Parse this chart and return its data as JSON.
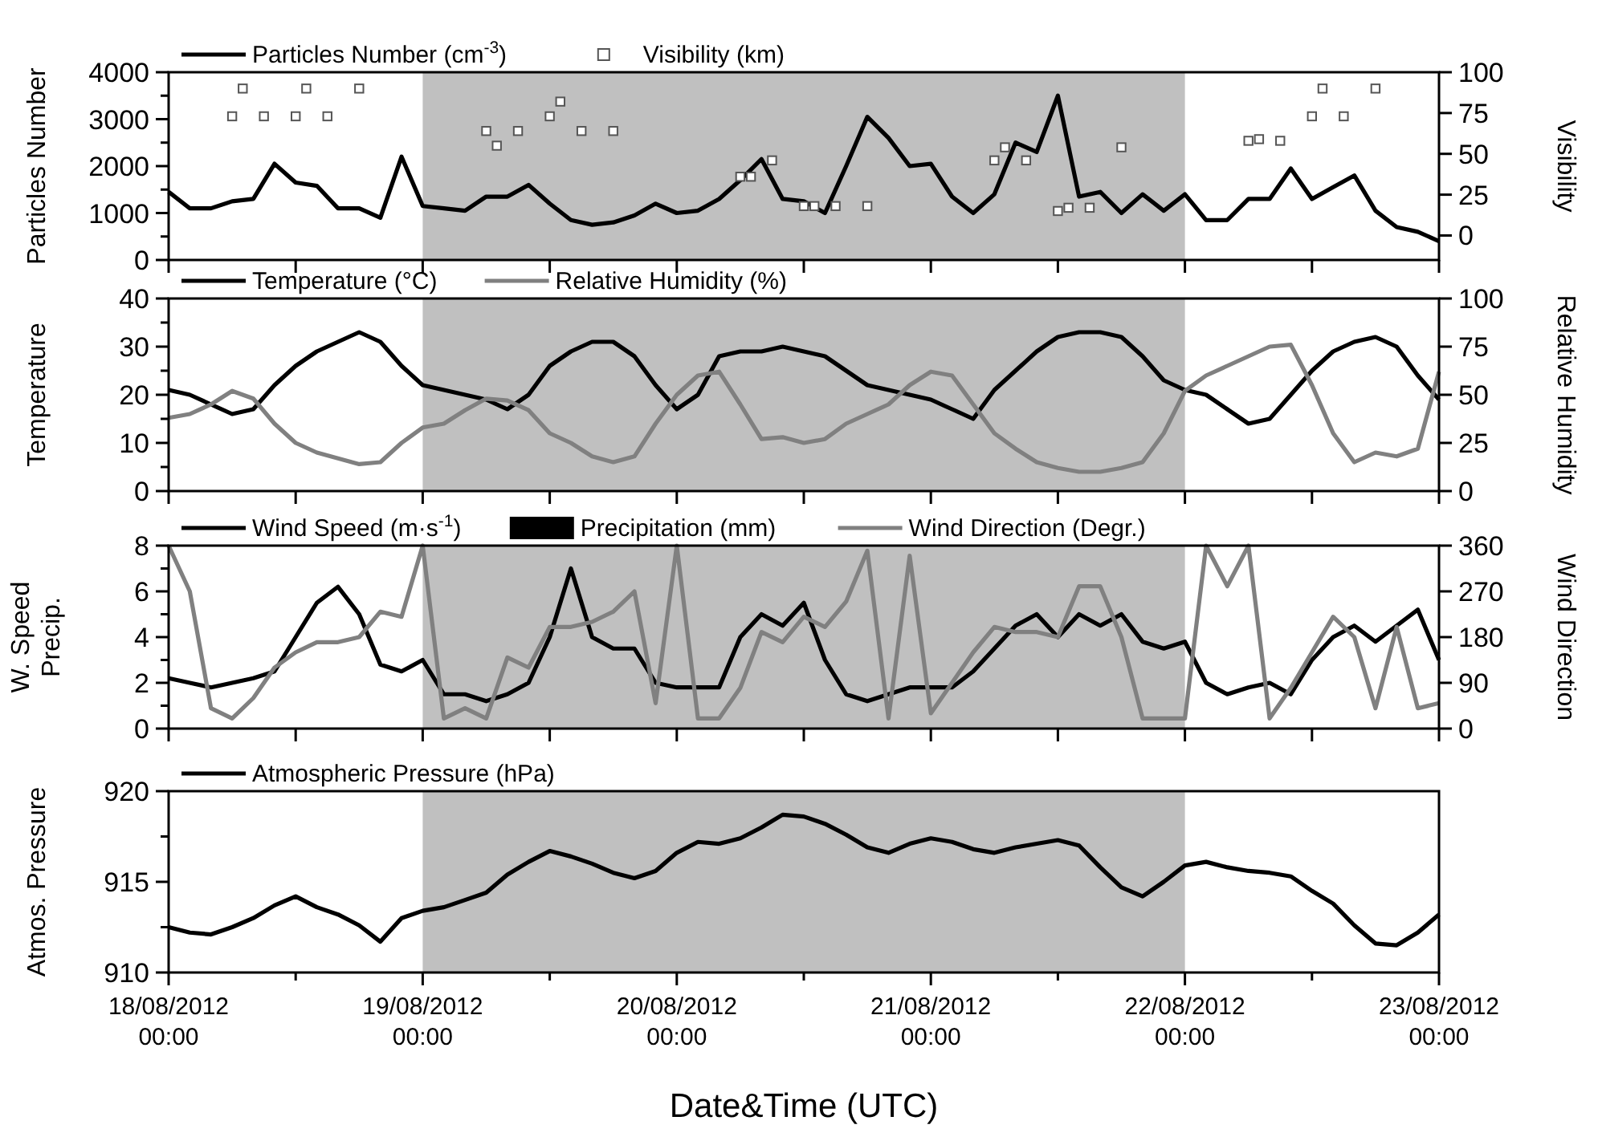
{
  "chart_data": [
    {
      "type": "line",
      "legend": "top left",
      "tick_labels": "y",
      "ylabel": "Particles Number",
      "y2label": "Visibility",
      "xlim": [
        "2012-08-18T00:00",
        "2012-08-23T00:00"
      ],
      "xticks": [
        {
          "value": "2012-08-18T00:00",
          "label": null
        },
        {
          "value": "2012-08-18T12:00",
          "label": null
        },
        {
          "value": "2012-08-19T00:00",
          "label": null
        },
        {
          "value": "2012-08-19T12:00",
          "label": null
        },
        {
          "value": "2012-08-20T00:00",
          "label": null
        },
        {
          "value": "2012-08-20T12:00",
          "label": null
        },
        {
          "value": "2012-08-21T00:00",
          "label": null
        },
        {
          "value": "2012-08-21T12:00",
          "label": null
        },
        {
          "value": "2012-08-22T00:00",
          "label": null
        },
        {
          "value": "2012-08-22T12:00",
          "label": null
        },
        {
          "value": "2012-08-23T00:00",
          "label": null
        }
      ],
      "ylim": [
        0,
        4000
      ],
      "yticks": [
        0,
        {
          "value": 500,
          "label": null
        },
        1000,
        {
          "value": 1500,
          "label": null
        },
        2000,
        {
          "value": 2500,
          "label": null
        },
        3000,
        {
          "value": 3500,
          "label": null
        },
        4000
      ],
      "y2lim": [
        -15,
        100
      ],
      "y2ticks": [
        0,
        25,
        50,
        75,
        100
      ],
      "bands": [
        {
          "axis": "x",
          "from": "2012-08-19T00:00",
          "to": "2012-08-22T00:00",
          "color": "#c0c0c0"
        }
      ],
      "x": [
        "2012-08-18T00:00",
        "2012-08-18T02:00",
        "2012-08-18T04:00",
        "2012-08-18T06:00",
        "2012-08-18T08:00",
        "2012-08-18T10:00",
        "2012-08-18T12:00",
        "2012-08-18T14:00",
        "2012-08-18T16:00",
        "2012-08-18T18:00",
        "2012-08-18T20:00",
        "2012-08-18T22:00",
        "2012-08-19T00:00",
        "2012-08-19T02:00",
        "2012-08-19T04:00",
        "2012-08-19T06:00",
        "2012-08-19T08:00",
        "2012-08-19T10:00",
        "2012-08-19T12:00",
        "2012-08-19T14:00",
        "2012-08-19T16:00",
        "2012-08-19T18:00",
        "2012-08-19T20:00",
        "2012-08-19T22:00",
        "2012-08-20T00:00",
        "2012-08-20T02:00",
        "2012-08-20T04:00",
        "2012-08-20T06:00",
        "2012-08-20T08:00",
        "2012-08-20T10:00",
        "2012-08-20T12:00",
        "2012-08-20T14:00",
        "2012-08-20T16:00",
        "2012-08-20T18:00",
        "2012-08-20T20:00",
        "2012-08-20T22:00",
        "2012-08-21T00:00",
        "2012-08-21T02:00",
        "2012-08-21T04:00",
        "2012-08-21T06:00",
        "2012-08-21T08:00",
        "2012-08-21T10:00",
        "2012-08-21T12:00",
        "2012-08-21T14:00",
        "2012-08-21T16:00",
        "2012-08-21T18:00",
        "2012-08-21T20:00",
        "2012-08-21T22:00",
        "2012-08-22T00:00",
        "2012-08-22T02:00",
        "2012-08-22T04:00",
        "2012-08-22T06:00",
        "2012-08-22T08:00",
        "2012-08-22T10:00",
        "2012-08-22T12:00",
        "2012-08-22T14:00",
        "2012-08-22T16:00",
        "2012-08-22T18:00",
        "2012-08-22T20:00",
        "2012-08-22T22:00",
        "2012-08-23T00:00"
      ],
      "series": [
        {
          "name": "Particles Number (cm$^{-3}$)",
          "color": "#000000",
          "values": [
            1450,
            1100,
            1100,
            1250,
            1300,
            2050,
            1650,
            1580,
            1100,
            1100,
            900,
            2200,
            1150,
            1100,
            1050,
            1350,
            1350,
            1600,
            1200,
            850,
            750,
            800,
            950,
            1200,
            1000,
            1050,
            1300,
            1700,
            2150,
            1300,
            1250,
            1000,
            2000,
            3050,
            2600,
            2000,
            2050,
            1350,
            1000,
            1400,
            2500,
            2300,
            3500,
            1350,
            1450,
            1000,
            1400,
            1050,
            1400,
            850,
            850,
            1300,
            1300,
            1950,
            1300,
            1550,
            1800,
            1050,
            700,
            600,
            400
          ]
        },
        {
          "name": "Visibility (km)",
          "type": "scatter",
          "marker": "square",
          "axis": "y2",
          "color": "#555555",
          "x": [
            "2012-08-18T06:00",
            "2012-08-18T07:00",
            "2012-08-18T09:00",
            "2012-08-18T12:00",
            "2012-08-18T13:00",
            "2012-08-18T15:00",
            "2012-08-18T18:00",
            "2012-08-19T06:00",
            "2012-08-19T07:00",
            "2012-08-19T09:00",
            "2012-08-19T12:00",
            "2012-08-19T13:00",
            "2012-08-19T15:00",
            "2012-08-19T18:00",
            "2012-08-20T06:00",
            "2012-08-20T07:00",
            "2012-08-20T09:00",
            "2012-08-20T12:00",
            "2012-08-20T13:00",
            "2012-08-20T15:00",
            "2012-08-20T18:00",
            "2012-08-21T06:00",
            "2012-08-21T07:00",
            "2012-08-21T09:00",
            "2012-08-21T12:00",
            "2012-08-21T13:00",
            "2012-08-21T15:00",
            "2012-08-21T18:00",
            "2012-08-22T06:00",
            "2012-08-22T07:00",
            "2012-08-22T09:00",
            "2012-08-22T12:00",
            "2012-08-22T13:00",
            "2012-08-22T15:00",
            "2012-08-22T18:00"
          ],
          "values": [
            73,
            90,
            73,
            73,
            90,
            73,
            90,
            64,
            55,
            64,
            73,
            82,
            64,
            64,
            36,
            36,
            46,
            18,
            18,
            18,
            18,
            46,
            54,
            46,
            15,
            17,
            17,
            54,
            58,
            59,
            58,
            73,
            90,
            73,
            90
          ]
        }
      ]
    },
    {
      "type": "line",
      "legend": "top left",
      "tick_labels": "y",
      "ylabel": "Temperature",
      "y2label": "Relative Humidity",
      "xlim": [
        "2012-08-18T00:00",
        "2012-08-23T00:00"
      ],
      "xticks": [
        {
          "value": "2012-08-18T00:00",
          "label": null
        },
        {
          "value": "2012-08-18T12:00",
          "label": null
        },
        {
          "value": "2012-08-19T00:00",
          "label": null
        },
        {
          "value": "2012-08-19T12:00",
          "label": null
        },
        {
          "value": "2012-08-20T00:00",
          "label": null
        },
        {
          "value": "2012-08-20T12:00",
          "label": null
        },
        {
          "value": "2012-08-21T00:00",
          "label": null
        },
        {
          "value": "2012-08-21T12:00",
          "label": null
        },
        {
          "value": "2012-08-22T00:00",
          "label": null
        },
        {
          "value": "2012-08-22T12:00",
          "label": null
        },
        {
          "value": "2012-08-23T00:00",
          "label": null
        }
      ],
      "ylim": [
        0,
        40
      ],
      "yticks": [
        0,
        {
          "value": 5,
          "label": null
        },
        10,
        {
          "value": 15,
          "label": null
        },
        20,
        {
          "value": 25,
          "label": null
        },
        30,
        {
          "value": 35,
          "label": null
        },
        40
      ],
      "y2lim": [
        0,
        100
      ],
      "y2ticks": [
        0,
        25,
        50,
        75,
        100
      ],
      "bands": [
        {
          "axis": "x",
          "from": "2012-08-19T00:00",
          "to": "2012-08-22T00:00",
          "color": "#c0c0c0"
        }
      ],
      "x": [
        "2012-08-18T00:00",
        "2012-08-18T02:00",
        "2012-08-18T04:00",
        "2012-08-18T06:00",
        "2012-08-18T08:00",
        "2012-08-18T10:00",
        "2012-08-18T12:00",
        "2012-08-18T14:00",
        "2012-08-18T16:00",
        "2012-08-18T18:00",
        "2012-08-18T20:00",
        "2012-08-18T22:00",
        "2012-08-19T00:00",
        "2012-08-19T02:00",
        "2012-08-19T04:00",
        "2012-08-19T06:00",
        "2012-08-19T08:00",
        "2012-08-19T10:00",
        "2012-08-19T12:00",
        "2012-08-19T14:00",
        "2012-08-19T16:00",
        "2012-08-19T18:00",
        "2012-08-19T20:00",
        "2012-08-19T22:00",
        "2012-08-20T00:00",
        "2012-08-20T02:00",
        "2012-08-20T04:00",
        "2012-08-20T06:00",
        "2012-08-20T08:00",
        "2012-08-20T10:00",
        "2012-08-20T12:00",
        "2012-08-20T14:00",
        "2012-08-20T16:00",
        "2012-08-20T18:00",
        "2012-08-20T20:00",
        "2012-08-20T22:00",
        "2012-08-21T00:00",
        "2012-08-21T02:00",
        "2012-08-21T04:00",
        "2012-08-21T06:00",
        "2012-08-21T08:00",
        "2012-08-21T10:00",
        "2012-08-21T12:00",
        "2012-08-21T14:00",
        "2012-08-21T16:00",
        "2012-08-21T18:00",
        "2012-08-21T20:00",
        "2012-08-21T22:00",
        "2012-08-22T00:00",
        "2012-08-22T02:00",
        "2012-08-22T04:00",
        "2012-08-22T06:00",
        "2012-08-22T08:00",
        "2012-08-22T10:00",
        "2012-08-22T12:00",
        "2012-08-22T14:00",
        "2012-08-22T16:00",
        "2012-08-22T18:00",
        "2012-08-22T20:00",
        "2012-08-22T22:00",
        "2012-08-23T00:00"
      ],
      "series": [
        {
          "name": "Temperature (°C)",
          "color": "#000000",
          "values": [
            21,
            20,
            18,
            16,
            17,
            22,
            26,
            29,
            31,
            33,
            31,
            26,
            22,
            21,
            20,
            19,
            17,
            20,
            26,
            29,
            31,
            31,
            28,
            22,
            17,
            20,
            28,
            29,
            29,
            30,
            29,
            28,
            25,
            22,
            21,
            20,
            19,
            17,
            15,
            21,
            25,
            29,
            32,
            33,
            33,
            32,
            28,
            23,
            21,
            20,
            17,
            14,
            15,
            20,
            25,
            29,
            31,
            32,
            30,
            24,
            19
          ]
        },
        {
          "name": "Relative Humidity (%)",
          "axis": "y2",
          "color": "#808080",
          "values": [
            38,
            40,
            45,
            52,
            48,
            35,
            25,
            20,
            17,
            14,
            15,
            25,
            33,
            35,
            42,
            48,
            47,
            42,
            30,
            25,
            18,
            15,
            18,
            35,
            50,
            60,
            62,
            45,
            27,
            28,
            25,
            27,
            35,
            40,
            45,
            55,
            62,
            60,
            45,
            30,
            22,
            15,
            12,
            10,
            10,
            12,
            15,
            30,
            52,
            60,
            65,
            70,
            75,
            76,
            55,
            30,
            15,
            20,
            18,
            22,
            62
          ]
        }
      ]
    },
    {
      "type": "line",
      "legend": "top left",
      "tick_labels": "y",
      "ylabel": "W. Speed\nPrecip.",
      "y2label": "Wind Direction",
      "xlim": [
        "2012-08-18T00:00",
        "2012-08-23T00:00"
      ],
      "xticks": [
        {
          "value": "2012-08-18T00:00",
          "label": null
        },
        {
          "value": "2012-08-18T12:00",
          "label": null
        },
        {
          "value": "2012-08-19T00:00",
          "label": null
        },
        {
          "value": "2012-08-19T12:00",
          "label": null
        },
        {
          "value": "2012-08-20T00:00",
          "label": null
        },
        {
          "value": "2012-08-20T12:00",
          "label": null
        },
        {
          "value": "2012-08-21T00:00",
          "label": null
        },
        {
          "value": "2012-08-21T12:00",
          "label": null
        },
        {
          "value": "2012-08-22T00:00",
          "label": null
        },
        {
          "value": "2012-08-22T12:00",
          "label": null
        },
        {
          "value": "2012-08-23T00:00",
          "label": null
        }
      ],
      "ylim": [
        0,
        8
      ],
      "yticks": [
        0,
        {
          "value": 1,
          "label": null
        },
        2,
        {
          "value": 3,
          "label": null
        },
        4,
        {
          "value": 5,
          "label": null
        },
        6,
        {
          "value": 7,
          "label": null
        },
        8
      ],
      "y2lim": [
        0,
        360
      ],
      "y2ticks": [
        0,
        90,
        180,
        270,
        360
      ],
      "bands": [
        {
          "axis": "x",
          "from": "2012-08-19T00:00",
          "to": "2012-08-22T00:00",
          "color": "#c0c0c0"
        }
      ],
      "x": [
        "2012-08-18T00:00",
        "2012-08-18T02:00",
        "2012-08-18T04:00",
        "2012-08-18T06:00",
        "2012-08-18T08:00",
        "2012-08-18T10:00",
        "2012-08-18T12:00",
        "2012-08-18T14:00",
        "2012-08-18T16:00",
        "2012-08-18T18:00",
        "2012-08-18T20:00",
        "2012-08-18T22:00",
        "2012-08-19T00:00",
        "2012-08-19T02:00",
        "2012-08-19T04:00",
        "2012-08-19T06:00",
        "2012-08-19T08:00",
        "2012-08-19T10:00",
        "2012-08-19T12:00",
        "2012-08-19T14:00",
        "2012-08-19T16:00",
        "2012-08-19T18:00",
        "2012-08-19T20:00",
        "2012-08-19T22:00",
        "2012-08-20T00:00",
        "2012-08-20T02:00",
        "2012-08-20T04:00",
        "2012-08-20T06:00",
        "2012-08-20T08:00",
        "2012-08-20T10:00",
        "2012-08-20T12:00",
        "2012-08-20T14:00",
        "2012-08-20T16:00",
        "2012-08-20T18:00",
        "2012-08-20T20:00",
        "2012-08-20T22:00",
        "2012-08-21T00:00",
        "2012-08-21T02:00",
        "2012-08-21T04:00",
        "2012-08-21T06:00",
        "2012-08-21T08:00",
        "2012-08-21T10:00",
        "2012-08-21T12:00",
        "2012-08-21T14:00",
        "2012-08-21T16:00",
        "2012-08-21T18:00",
        "2012-08-21T20:00",
        "2012-08-21T22:00",
        "2012-08-22T00:00",
        "2012-08-22T02:00",
        "2012-08-22T04:00",
        "2012-08-22T06:00",
        "2012-08-22T08:00",
        "2012-08-22T10:00",
        "2012-08-22T12:00",
        "2012-08-22T14:00",
        "2012-08-22T16:00",
        "2012-08-22T18:00",
        "2012-08-22T20:00",
        "2012-08-22T22:00",
        "2012-08-23T00:00"
      ],
      "series": [
        {
          "name": "Wind Speed (m·s$^{-1}$)",
          "color": "#000000",
          "values": [
            2.2,
            2.0,
            1.8,
            2.0,
            2.2,
            2.5,
            4.0,
            5.5,
            6.2,
            5.0,
            2.8,
            2.5,
            3.0,
            1.5,
            1.5,
            1.2,
            1.5,
            2.0,
            4.0,
            7.0,
            4.0,
            3.5,
            3.5,
            2.0,
            1.8,
            1.8,
            1.8,
            4.0,
            5.0,
            4.5,
            5.5,
            3.0,
            1.5,
            1.2,
            1.5,
            1.8,
            1.8,
            1.8,
            2.5,
            3.5,
            4.5,
            5.0,
            4.0,
            5.0,
            4.5,
            5.0,
            3.8,
            3.5,
            3.8,
            2.0,
            1.5,
            1.8,
            2.0,
            1.5,
            3.0,
            4.0,
            4.5,
            3.8,
            4.5,
            5.2,
            3.0
          ]
        },
        {
          "name": "Precipitation (mm)",
          "type": "bar",
          "color": "#000000",
          "values": [
            0,
            0,
            0,
            0,
            0,
            0,
            0,
            0,
            0,
            0,
            0,
            0,
            0,
            0,
            0,
            0,
            0,
            0,
            0,
            0,
            0,
            0,
            0,
            0,
            0,
            0,
            0,
            0,
            0,
            0,
            0,
            0,
            0,
            0,
            0,
            0,
            0,
            0,
            0,
            0,
            0,
            0,
            0,
            0,
            0,
            0,
            0,
            0,
            0,
            0,
            0,
            0,
            0,
            0,
            0,
            0,
            0,
            0,
            0,
            0,
            0
          ]
        },
        {
          "name": "Wind Direction (Degr.)",
          "axis": "y2",
          "color": "#808080",
          "values": [
            360,
            270,
            40,
            20,
            60,
            120,
            150,
            170,
            170,
            180,
            230,
            220,
            360,
            20,
            40,
            20,
            140,
            120,
            200,
            200,
            210,
            230,
            270,
            50,
            360,
            20,
            20,
            80,
            190,
            170,
            220,
            200,
            250,
            350,
            20,
            340,
            30,
            90,
            150,
            200,
            190,
            190,
            180,
            280,
            280,
            180,
            20,
            20,
            20,
            360,
            280,
            360,
            20,
            80,
            150,
            220,
            180,
            40,
            200,
            40,
            50
          ]
        }
      ]
    },
    {
      "type": "line",
      "legend": "top left",
      "ylabel": "Atmos. Pressure",
      "xlabel": "Date&Time (UTC)",
      "xlim": [
        "2012-08-18T00:00",
        "2012-08-23T00:00"
      ],
      "xticks": [
        {
          "value": "2012-08-18T00:00",
          "label": "18/08/2012 00:00"
        },
        {
          "value": "2012-08-18T12:00",
          "label": null
        },
        {
          "value": "2012-08-19T00:00",
          "label": "19/08/2012 00:00"
        },
        {
          "value": "2012-08-19T12:00",
          "label": null
        },
        {
          "value": "2012-08-20T00:00",
          "label": "20/08/2012 00:00"
        },
        {
          "value": "2012-08-20T12:00",
          "label": null
        },
        {
          "value": "2012-08-21T00:00",
          "label": "21/08/2012 00:00"
        },
        {
          "value": "2012-08-21T12:00",
          "label": null
        },
        {
          "value": "2012-08-22T00:00",
          "label": "22/08/2012 00:00"
        },
        {
          "value": "2012-08-22T12:00",
          "label": null
        },
        {
          "value": "2012-08-23T00:00",
          "label": "23/08/2012 00:00"
        }
      ],
      "ylim": [
        910,
        920
      ],
      "yticks": [
        910,
        {
          "value": 912.5,
          "label": null
        },
        915,
        {
          "value": 917.5,
          "label": null
        },
        920
      ],
      "bands": [
        {
          "axis": "x",
          "from": "2012-08-19T00:00",
          "to": "2012-08-22T00:00",
          "color": "#c0c0c0"
        }
      ],
      "x": [
        "2012-08-18T00:00",
        "2012-08-18T02:00",
        "2012-08-18T04:00",
        "2012-08-18T06:00",
        "2012-08-18T08:00",
        "2012-08-18T10:00",
        "2012-08-18T12:00",
        "2012-08-18T14:00",
        "2012-08-18T16:00",
        "2012-08-18T18:00",
        "2012-08-18T20:00",
        "2012-08-18T22:00",
        "2012-08-19T00:00",
        "2012-08-19T02:00",
        "2012-08-19T04:00",
        "2012-08-19T06:00",
        "2012-08-19T08:00",
        "2012-08-19T10:00",
        "2012-08-19T12:00",
        "2012-08-19T14:00",
        "2012-08-19T16:00",
        "2012-08-19T18:00",
        "2012-08-19T20:00",
        "2012-08-19T22:00",
        "2012-08-20T00:00",
        "2012-08-20T02:00",
        "2012-08-20T04:00",
        "2012-08-20T06:00",
        "2012-08-20T08:00",
        "2012-08-20T10:00",
        "2012-08-20T12:00",
        "2012-08-20T14:00",
        "2012-08-20T16:00",
        "2012-08-20T18:00",
        "2012-08-20T20:00",
        "2012-08-20T22:00",
        "2012-08-21T00:00",
        "2012-08-21T02:00",
        "2012-08-21T04:00",
        "2012-08-21T06:00",
        "2012-08-21T08:00",
        "2012-08-21T10:00",
        "2012-08-21T12:00",
        "2012-08-21T14:00",
        "2012-08-21T16:00",
        "2012-08-21T18:00",
        "2012-08-21T20:00",
        "2012-08-21T22:00",
        "2012-08-22T00:00",
        "2012-08-22T02:00",
        "2012-08-22T04:00",
        "2012-08-22T06:00",
        "2012-08-22T08:00",
        "2012-08-22T10:00",
        "2012-08-22T12:00",
        "2012-08-22T14:00",
        "2012-08-22T16:00",
        "2012-08-22T18:00",
        "2012-08-22T20:00",
        "2012-08-22T22:00",
        "2012-08-23T00:00"
      ],
      "series": [
        {
          "name": "Atmospheric Pressure (hPa)",
          "color": "#000000",
          "values": [
            912.5,
            912.2,
            912.1,
            912.5,
            913,
            913.7,
            914.2,
            913.6,
            913.2,
            912.6,
            911.7,
            913,
            913.4,
            913.6,
            914,
            914.4,
            915.4,
            916.1,
            916.7,
            916.4,
            916,
            915.5,
            915.2,
            915.6,
            916.6,
            917.2,
            917.1,
            917.4,
            918,
            918.7,
            918.6,
            918.2,
            917.6,
            916.9,
            916.6,
            917.1,
            917.4,
            917.2,
            916.8,
            916.6,
            916.9,
            917.1,
            917.3,
            917,
            915.8,
            914.7,
            914.2,
            915,
            915.9,
            916.1,
            915.8,
            915.6,
            915.5,
            915.3,
            914.5,
            913.8,
            912.6,
            911.6,
            911.5,
            912.2,
            913.2
          ]
        }
      ]
    }
  ]
}
